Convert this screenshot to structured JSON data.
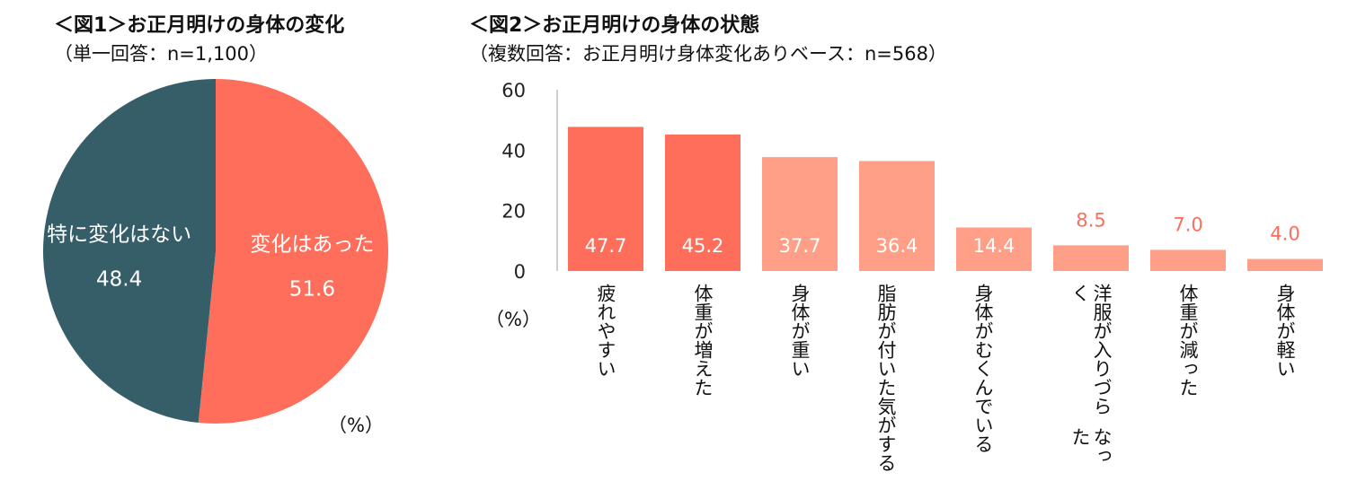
{
  "figure1": {
    "title": "＜図1＞お正月明けの身体の変化",
    "subtitle": "（単一回答：n=1,100）",
    "unit": "（%）"
  },
  "figure2": {
    "title": "＜図2＞お正月明けの身体の状態",
    "subtitle": "（複数回答：お正月明け身体変化ありベース：n=568）",
    "unit": "（%）"
  },
  "colors": {
    "dark": "#355E69",
    "coral": "#FF6E5A",
    "salmon": "#FF9F87",
    "label_red": "#FF6E5A"
  },
  "chart_data": [
    {
      "type": "pie",
      "title": "＜図1＞お正月明けの身体の変化",
      "subtitle": "（単一回答：n=1,100）",
      "slices": [
        {
          "label": "変化はあった",
          "value": 51.6,
          "value_text": "51.6"
        },
        {
          "label": "特に変化はない",
          "value": 48.4,
          "value_text": "48.4"
        }
      ]
    },
    {
      "type": "bar",
      "title": "＜図2＞お正月明けの身体の状態",
      "subtitle": "（複数回答：お正月明け身体変化ありベース：n=568）",
      "ylabel": "（%）",
      "ylim": [
        0,
        60
      ],
      "yticks": [
        0,
        20,
        40,
        60
      ],
      "grid": false,
      "categories": [
        [
          "疲れやすい"
        ],
        [
          "体重が増えた"
        ],
        [
          "身体が重い"
        ],
        [
          "脂肪が付いた",
          "気がする"
        ],
        [
          "身体が",
          "むくんでいる"
        ],
        [
          "洋服が入りづらく",
          "なった"
        ],
        [
          "体重が減った"
        ],
        [
          "身体が軽い"
        ]
      ],
      "values": [
        47.7,
        45.2,
        37.7,
        36.4,
        14.4,
        8.5,
        7.0,
        4.0
      ],
      "value_labels": [
        "47.7",
        "45.2",
        "37.7",
        "36.4",
        "14.4",
        "8.5",
        "7.0",
        "4.0"
      ]
    }
  ]
}
